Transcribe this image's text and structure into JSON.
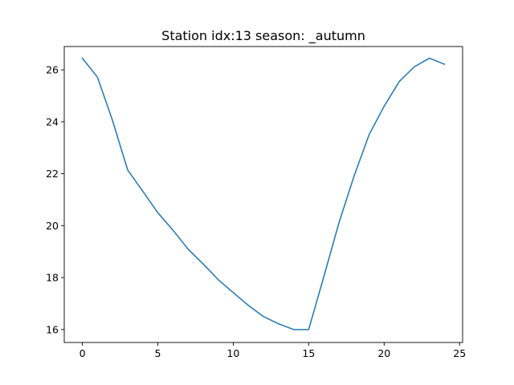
{
  "chart_data": {
    "type": "line",
    "title": "Station idx:13 season: _autumn",
    "xlabel": "",
    "ylabel": "",
    "xlim": [
      -1.2,
      25.2
    ],
    "ylim": [
      15.5,
      26.9
    ],
    "x_ticks": [
      0,
      5,
      10,
      15,
      20,
      25
    ],
    "y_ticks": [
      16,
      18,
      20,
      22,
      24,
      26
    ],
    "grid": false,
    "series": [
      {
        "color": "#1f77b4",
        "x": [
          0,
          1,
          2,
          3,
          4,
          5,
          6,
          7,
          8,
          9,
          10,
          11,
          12,
          13,
          14,
          15,
          16,
          17,
          18,
          19,
          20,
          21,
          22,
          23,
          24
        ],
        "values": [
          26.45,
          25.72,
          24.05,
          22.15,
          21.33,
          20.5,
          19.83,
          19.1,
          18.53,
          17.92,
          17.42,
          16.93,
          16.5,
          16.22,
          16.0,
          16.0,
          18.03,
          20.1,
          21.9,
          23.5,
          24.6,
          25.55,
          26.12,
          26.45,
          26.22
        ]
      }
    ]
  }
}
